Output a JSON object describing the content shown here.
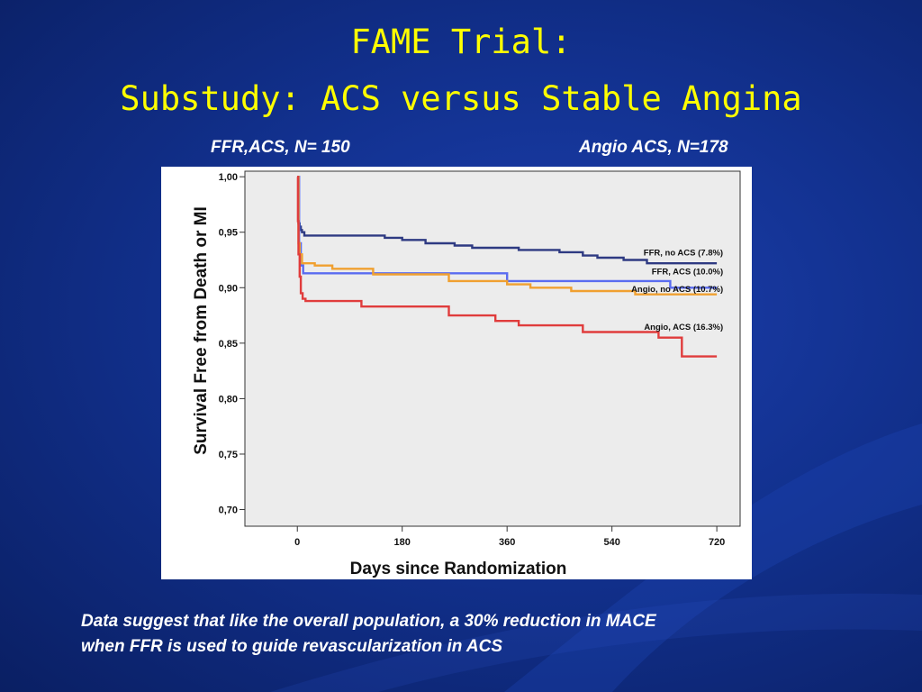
{
  "slide": {
    "title_line1": "FAME Trial:",
    "title_line2": "Substudy: ACS versus Stable Angina",
    "label_left": "FFR,ACS, N= 150",
    "label_right": "Angio ACS, N=178",
    "caption_line1": "Data suggest  that like the overall population,  a 30% reduction in MACE",
    "caption_line2": "when FFR is used to guide revascularization in ACS"
  },
  "colors": {
    "title": "#ffff00",
    "background": "#12318f",
    "plot_area": "#ececec"
  },
  "chart_data": {
    "type": "line",
    "step": true,
    "title": "",
    "xlabel": "Days since Randomization",
    "ylabel": "Survival Free from Death or MI",
    "xlim": [
      -90,
      760
    ],
    "ylim": [
      0.685,
      1.005
    ],
    "x_ticks": [
      "0",
      "180",
      "360",
      "540",
      "720"
    ],
    "x_tick_values": [
      0,
      180,
      360,
      540,
      720
    ],
    "y_ticks": [
      "1,00",
      "0,95",
      "0,90",
      "0,85",
      "0,80",
      "0,75",
      "0,70"
    ],
    "y_tick_values": [
      1.0,
      0.95,
      0.9,
      0.85,
      0.8,
      0.75,
      0.7
    ],
    "grid": false,
    "series": [
      {
        "name": "FFR, no ACS (7.8%)",
        "color": "#2e3a82",
        "label": "FFR, no ACS (7.8%)",
        "x": [
          0,
          2,
          4,
          6,
          8,
          12,
          150,
          180,
          220,
          270,
          300,
          380,
          450,
          490,
          515,
          560,
          600,
          720
        ],
        "y": [
          1.0,
          0.958,
          0.955,
          0.952,
          0.95,
          0.947,
          0.945,
          0.943,
          0.94,
          0.938,
          0.936,
          0.934,
          0.932,
          0.929,
          0.927,
          0.925,
          0.922,
          0.922
        ]
      },
      {
        "name": "FFR, ACS (10.0%)",
        "color": "#5a6cf0",
        "label": "FFR, ACS (10.0%)",
        "x": [
          0,
          3,
          6,
          10,
          360,
          640,
          720
        ],
        "y": [
          1.0,
          0.94,
          0.92,
          0.913,
          0.906,
          0.9,
          0.9
        ]
      },
      {
        "name": "Angio, no ACS (10.7%)",
        "color": "#f0a030",
        "label": "Angio, no ACS (10.7%)",
        "x": [
          0,
          2,
          4,
          8,
          30,
          60,
          130,
          260,
          360,
          400,
          470,
          580,
          720
        ],
        "y": [
          1.0,
          0.94,
          0.93,
          0.922,
          0.92,
          0.917,
          0.912,
          0.906,
          0.903,
          0.9,
          0.897,
          0.894,
          0.894
        ]
      },
      {
        "name": "Angio, ACS (16.3%)",
        "color": "#e03c3c",
        "label": "Angio, ACS (16.3%)",
        "x": [
          0,
          1,
          2,
          4,
          6,
          9,
          14,
          28,
          65,
          110,
          260,
          340,
          380,
          490,
          620,
          660,
          720
        ],
        "y": [
          1.0,
          0.96,
          0.93,
          0.91,
          0.895,
          0.89,
          0.888,
          0.888,
          0.888,
          0.883,
          0.875,
          0.87,
          0.866,
          0.86,
          0.855,
          0.838,
          0.838
        ]
      }
    ],
    "series_label_values": [
      {
        "x": 720,
        "y": 0.929
      },
      {
        "x": 720,
        "y": 0.912
      },
      {
        "x": 720,
        "y": 0.896
      },
      {
        "x": 720,
        "y": 0.862
      }
    ]
  }
}
